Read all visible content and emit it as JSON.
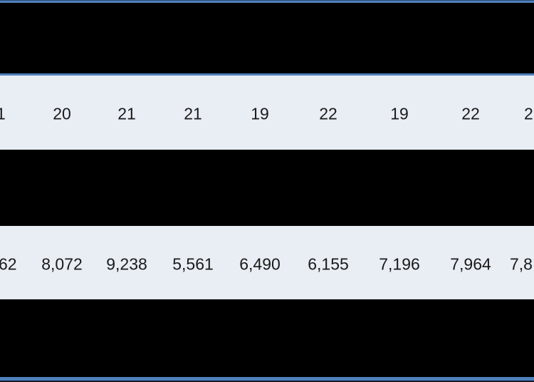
{
  "table": {
    "description": "Cropped table with redacted (blacked-out) rows and blue accent rules",
    "colors": {
      "accent_blue": "#4F81BD",
      "row_background": "#E9EDF4",
      "redacted_band": "#000000",
      "text": "#1A1A1A"
    },
    "row_counts": {
      "left_clipped_fragment": "1",
      "cells": [
        "20",
        "21",
        "21",
        "19",
        "22",
        "19",
        "22"
      ],
      "right_clipped_fragment": "2"
    },
    "row_values": {
      "left_clipped_fragment": "62",
      "cells": [
        "8,072",
        "9,238",
        "5,561",
        "6,490",
        "6,155",
        "7,196",
        "7,964"
      ],
      "right_clipped_fragment": "7,8"
    }
  }
}
